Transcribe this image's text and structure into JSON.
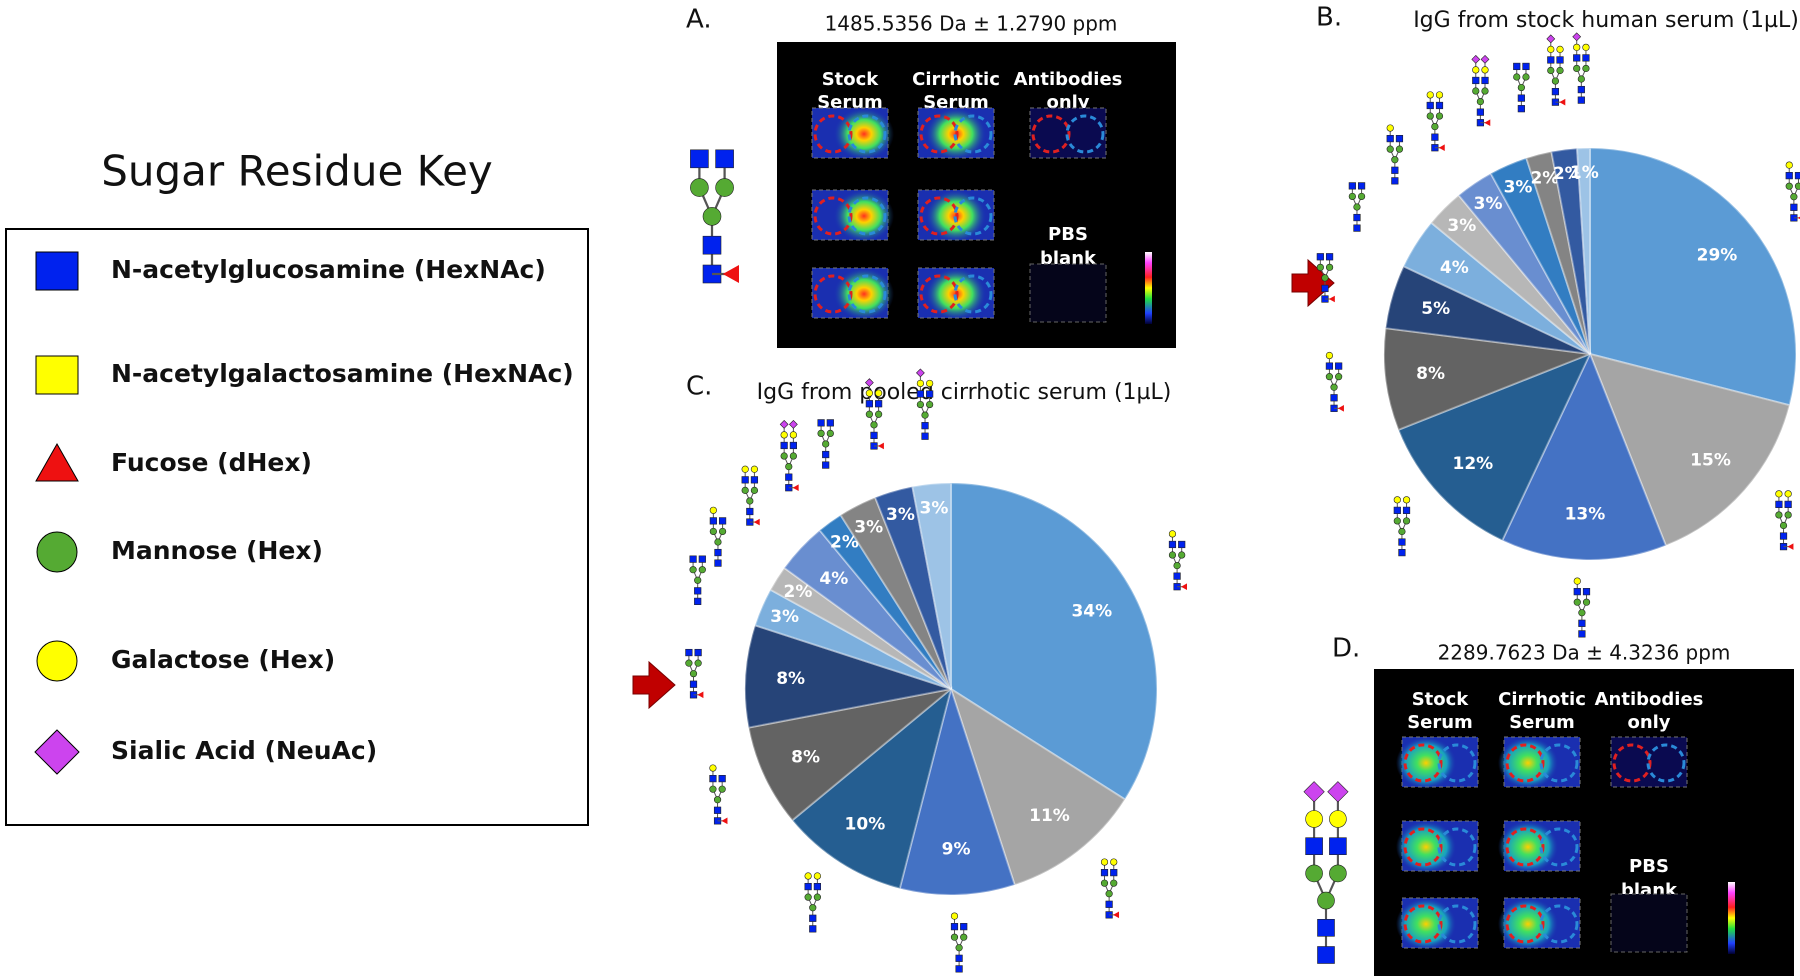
{
  "key": {
    "title": "Sugar Residue Key",
    "items": [
      "N-acetylglucosamine (HexNAc)",
      "N-acetylgalactosamine (HexNAc)",
      "Fucose (dHex)",
      "Mannose (Hex)",
      "Galactose (Hex)",
      "Sialic Acid (NeuAc)"
    ]
  },
  "panels": [
    {
      "label": "A.",
      "mass": "1485.5356 Da ± 1.2790 ppm",
      "columns": [
        [
          "Stock",
          "Serum"
        ],
        [
          "Cirrhotic",
          "Serum"
        ],
        [
          "Antibodies",
          "only"
        ]
      ],
      "blank": [
        "PBS",
        "blank"
      ]
    },
    {
      "label": "D.",
      "mass": "2289.7623 Da ± 4.3236 ppm",
      "columns": [
        [
          "Stock",
          "Serum"
        ],
        [
          "Cirrhotic",
          "Serum"
        ],
        [
          "Antibodies",
          "only"
        ]
      ],
      "blank": [
        "PBS",
        "blank"
      ]
    }
  ],
  "chart_data": [
    {
      "type": "pie",
      "panel": "B.",
      "title": "IgG from stock human serum (1µL)",
      "values": [
        29,
        15,
        13,
        12,
        8,
        5,
        4,
        3,
        3,
        3,
        2,
        2,
        1
      ],
      "value_labels": [
        "29%",
        "15%",
        "13%",
        "12%",
        "8%",
        "5%",
        "4%",
        "3%",
        "3%",
        "3%",
        "2%",
        "2%",
        "1%"
      ],
      "colors": [
        "#5b9bd5",
        "#a5a5a5",
        "#4472c4",
        "#255e91",
        "#636363",
        "#264478",
        "#7cafdd",
        "#b7b7b7",
        "#698ed0",
        "#327dc2",
        "#848484",
        "#335aa1",
        "#9dc3e6"
      ]
    },
    {
      "type": "pie",
      "panel": "C.",
      "title": "IgG from pooled cirrhotic serum (1µL)",
      "values": [
        34,
        11,
        9,
        10,
        8,
        8,
        3,
        2,
        4,
        2,
        3,
        3,
        3
      ],
      "value_labels": [
        "34%",
        "11%",
        "9%",
        "10%",
        "8%",
        "8%",
        "3%",
        "2%",
        "4%",
        "2%",
        "3%",
        "3%",
        "3%"
      ],
      "colors": [
        "#5b9bd5",
        "#a5a5a5",
        "#4472c4",
        "#255e91",
        "#636363",
        "#264478",
        "#7cafdd",
        "#b7b7b7",
        "#698ed0",
        "#327dc2",
        "#848484",
        "#335aa1",
        "#9dc3e6"
      ]
    }
  ]
}
